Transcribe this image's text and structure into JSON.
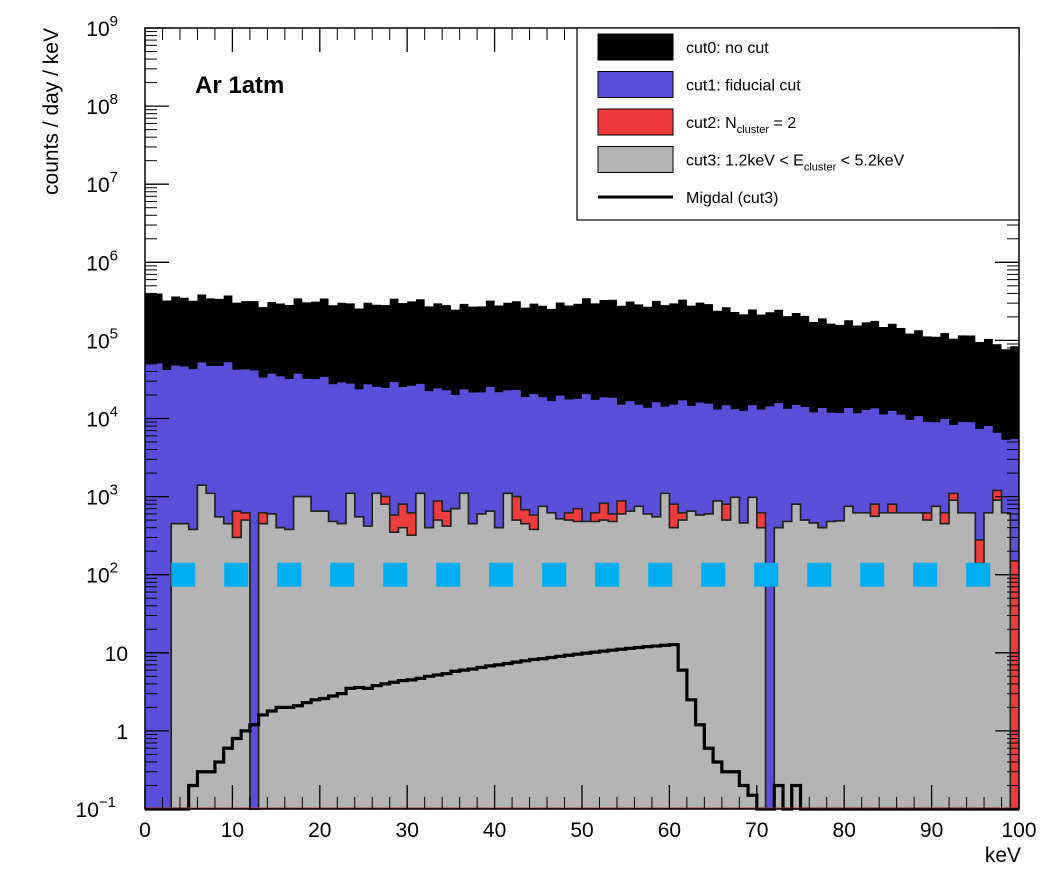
{
  "chart_data": {
    "type": "histogram",
    "xlabel": "keV",
    "ylabel": "counts / day / keV",
    "xlim": [
      0,
      100
    ],
    "ylim": [
      0.1,
      1000000000
    ],
    "yscale": "log",
    "bin_width": 1,
    "x_ticks": [
      "0",
      "10",
      "20",
      "30",
      "40",
      "50",
      "60",
      "70",
      "80",
      "90",
      "100"
    ],
    "y_ticks": [
      {
        "value": 0.1,
        "base": "10",
        "exp": "−1"
      },
      {
        "value": 1,
        "base": "1",
        "exp": ""
      },
      {
        "value": 10,
        "base": "10",
        "exp": ""
      },
      {
        "value": 100,
        "base": "10",
        "exp": "2"
      },
      {
        "value": 1000,
        "base": "10",
        "exp": "3"
      },
      {
        "value": 10000,
        "base": "10",
        "exp": "4"
      },
      {
        "value": 100000,
        "base": "10",
        "exp": "5"
      },
      {
        "value": 1000000,
        "base": "10",
        "exp": "6"
      },
      {
        "value": 10000000,
        "base": "10",
        "exp": "7"
      },
      {
        "value": 100000000,
        "base": "10",
        "exp": "8"
      },
      {
        "value": 1000000000,
        "base": "10",
        "exp": "9"
      }
    ],
    "annotation": "Ar 1atm",
    "legend_position": "top-right",
    "legend": [
      {
        "key": "cut0",
        "prefix": "cut0: no cut",
        "sub": "",
        "suffix": "",
        "color": "#000000",
        "style": "fill"
      },
      {
        "key": "cut1",
        "prefix": "cut1: fiducial cut",
        "sub": "",
        "suffix": "",
        "color": "#5B4FD9",
        "style": "fill"
      },
      {
        "key": "cut2",
        "prefix": "cut2: N",
        "sub": "cluster",
        "suffix": " = 2",
        "color": "#EE3B3B",
        "style": "fill"
      },
      {
        "key": "cut3",
        "prefix": "cut3: 1.2keV < E",
        "sub": "cluster",
        "suffix": " < 5.2keV",
        "color": "#B4B4B4",
        "style": "fill"
      },
      {
        "key": "migdal",
        "prefix": "Migdal (cut3)",
        "sub": "",
        "suffix": "",
        "color": "#000000",
        "style": "line"
      }
    ],
    "series": {
      "cut0_anchors": [
        [
          0,
          400000
        ],
        [
          10,
          320000
        ],
        [
          20,
          300000
        ],
        [
          30,
          300000
        ],
        [
          40,
          280000
        ],
        [
          50,
          300000
        ],
        [
          58,
          310000
        ],
        [
          65,
          270000
        ],
        [
          75,
          200000
        ],
        [
          85,
          150000
        ],
        [
          93,
          110000
        ],
        [
          100,
          80000
        ]
      ],
      "cut1_anchors": [
        [
          0,
          50000
        ],
        [
          10,
          45000
        ],
        [
          20,
          30000
        ],
        [
          30,
          25000
        ],
        [
          40,
          22000
        ],
        [
          50,
          18000
        ],
        [
          60,
          15000
        ],
        [
          70,
          14000
        ],
        [
          80,
          13000
        ],
        [
          90,
          10000
        ],
        [
          97,
          7000
        ],
        [
          100,
          5000
        ]
      ],
      "cut2_bins": [
        0.1,
        0.1,
        0.1,
        450,
        450,
        380,
        1400,
        1100,
        550,
        450,
        650,
        620,
        0.1,
        620,
        600,
        400,
        380,
        1000,
        1000,
        650,
        650,
        480,
        450,
        1100,
        550,
        420,
        1100,
        1000,
        580,
        800,
        620,
        1100,
        400,
        880,
        650,
        700,
        1100,
        450,
        600,
        650,
        400,
        1100,
        1000,
        680,
        580,
        750,
        620,
        520,
        620,
        700,
        480,
        620,
        820,
        600,
        880,
        650,
        750,
        600,
        550,
        1100,
        800,
        620,
        650,
        580,
        600,
        880,
        800,
        980,
        460,
        980,
        620,
        0.1,
        400,
        480,
        800,
        500,
        460,
        400,
        480,
        490,
        750,
        620,
        620,
        800,
        620,
        800,
        620,
        620,
        620,
        620,
        750,
        620,
        1100,
        620,
        620,
        280,
        620,
        1200,
        620,
        150
      ],
      "cut3_bins": [
        0.1,
        0.1,
        0.1,
        450,
        450,
        380,
        1400,
        1100,
        550,
        450,
        300,
        500,
        0.1,
        450,
        600,
        400,
        380,
        1000,
        1000,
        650,
        650,
        480,
        450,
        1100,
        550,
        420,
        1100,
        800,
        350,
        400,
        320,
        1100,
        400,
        500,
        420,
        700,
        1100,
        450,
        600,
        650,
        400,
        1100,
        500,
        450,
        380,
        750,
        620,
        520,
        500,
        480,
        480,
        480,
        500,
        480,
        600,
        650,
        750,
        600,
        550,
        1100,
        400,
        500,
        650,
        580,
        600,
        880,
        500,
        980,
        460,
        980,
        400,
        0.1,
        400,
        480,
        800,
        500,
        460,
        400,
        480,
        490,
        750,
        620,
        620,
        560,
        620,
        620,
        620,
        620,
        620,
        500,
        750,
        450,
        900,
        620,
        620,
        140,
        620,
        900,
        620,
        0.1
      ],
      "migdal_bins": [
        0.1,
        0.1,
        0.1,
        0.1,
        0.1,
        0.2,
        0.3,
        0.3,
        0.4,
        0.6,
        0.8,
        1.0,
        1.2,
        1.6,
        1.8,
        2.0,
        2.0,
        2.1,
        2.3,
        2.5,
        2.6,
        2.8,
        3.0,
        3.5,
        3.6,
        3.5,
        3.8,
        4.0,
        4.2,
        4.4,
        4.5,
        4.7,
        5.0,
        5.2,
        5.4,
        5.8,
        6.0,
        6.2,
        6.5,
        6.8,
        7.0,
        7.3,
        7.6,
        7.9,
        8.2,
        8.4,
        8.7,
        9.0,
        9.3,
        9.6,
        9.9,
        10.2,
        10.5,
        10.8,
        11.1,
        11.4,
        11.7,
        12.0,
        12.2,
        12.5,
        12.7,
        6.0,
        2.5,
        1.2,
        0.6,
        0.4,
        0.3,
        0.3,
        0.2,
        0.15,
        0.1,
        0.1,
        0.2,
        0.1,
        0.2,
        0.1,
        0.1,
        0.1,
        0.1,
        0.1,
        0.1,
        0.1,
        0.1,
        0.1,
        0.1,
        0.1,
        0.1,
        0.1,
        0.1,
        0.1,
        0.1,
        0.1,
        0.1,
        0.1,
        0.1,
        0.1,
        0.1,
        0.1,
        0.1,
        0.1
      ],
      "dashed_line": {
        "y": 100,
        "x_start": 3,
        "x_end": 97,
        "color": "#00AEEF"
      }
    }
  }
}
